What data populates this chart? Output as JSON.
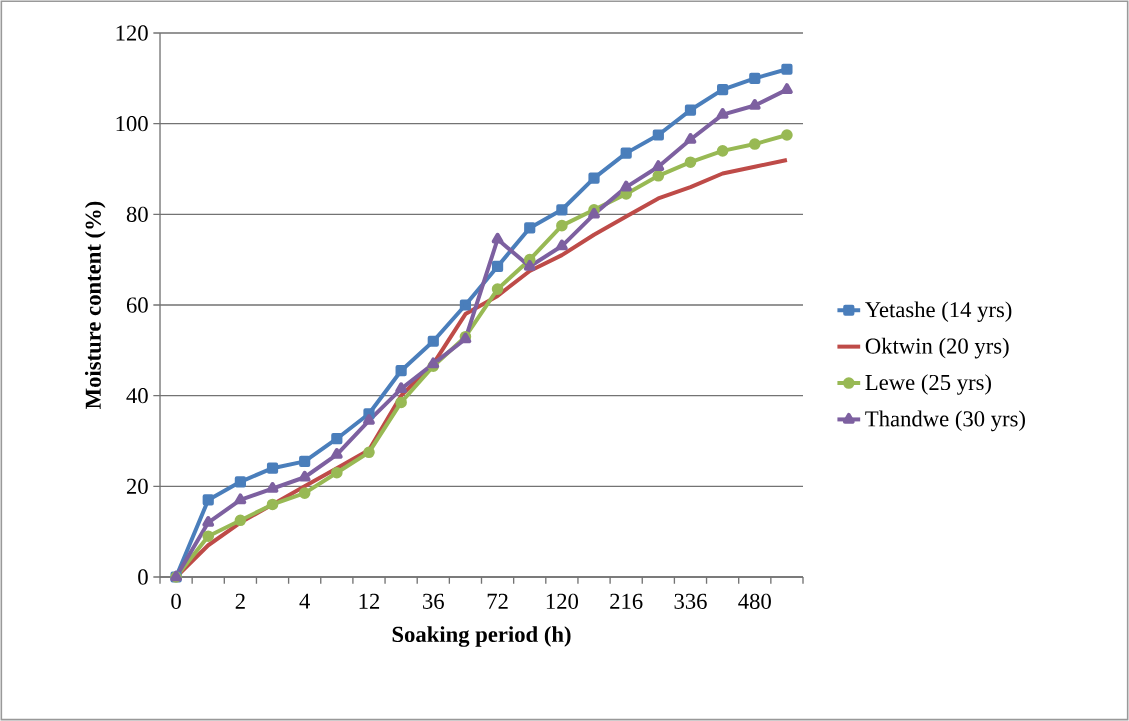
{
  "chart_data": {
    "type": "line",
    "xlabel": "Soaking period (h)",
    "ylabel": "Moisture content (%)",
    "categories": [
      "0",
      null,
      "2",
      null,
      "4",
      null,
      "12",
      null,
      "36",
      null,
      "72",
      null,
      "120",
      null,
      "216",
      null,
      "336",
      null,
      "480",
      null
    ],
    "series": [
      {
        "name": "Yetashe (14 yrs)",
        "color": "#4a7ebb",
        "marker": "square",
        "values": [
          0,
          17,
          21,
          24,
          25.5,
          30.5,
          36,
          45.5,
          52,
          60,
          68.5,
          77,
          81,
          88,
          93.5,
          97.5,
          103,
          107.5,
          110,
          112
        ]
      },
      {
        "name": "Oktwin (20 yrs)",
        "color": "#be4b48",
        "marker": "none",
        "values": [
          0,
          7,
          12,
          16,
          20,
          24,
          28,
          40,
          47,
          58,
          62,
          67.5,
          71,
          75.5,
          79.5,
          83.5,
          86,
          89,
          90.5,
          92
        ]
      },
      {
        "name": "Lewe (25 yrs)",
        "color": "#98b954",
        "marker": "circle",
        "values": [
          0,
          9,
          12.5,
          16,
          18.5,
          23,
          27.5,
          38.5,
          46.5,
          53,
          63.5,
          70,
          77.5,
          81,
          84.5,
          88.5,
          91.5,
          94,
          95.5,
          97.5
        ]
      },
      {
        "name": "Thandwe (30 yrs)",
        "color": "#7d60a0",
        "marker": "triangle",
        "values": [
          0,
          12,
          17,
          19.5,
          22,
          27,
          34.5,
          41.5,
          47,
          52.5,
          74.5,
          68.5,
          73,
          80,
          86,
          90.5,
          96.5,
          102,
          104,
          107.5
        ]
      }
    ],
    "ylim": [
      0,
      120
    ],
    "yticks": [
      0,
      20,
      40,
      60,
      80,
      100,
      120
    ],
    "grid": "y",
    "legend": "right"
  }
}
